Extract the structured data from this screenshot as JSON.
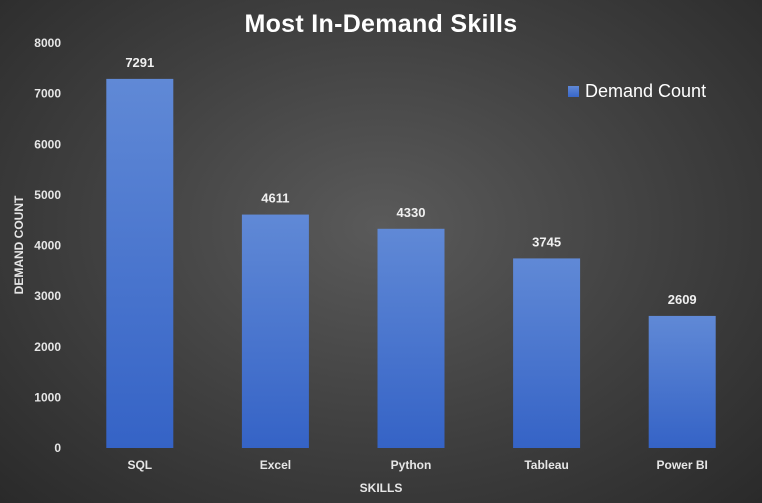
{
  "chart_data": {
    "type": "bar",
    "title": "Most In-Demand Skills",
    "xlabel": "SKILLS",
    "ylabel": "DEMAND COUNT",
    "categories": [
      "SQL",
      "Excel",
      "Python",
      "Tableau",
      "Power BI"
    ],
    "series": [
      {
        "name": "Demand Count",
        "values": [
          7291,
          4611,
          4330,
          3745,
          2609
        ]
      }
    ],
    "data_labels": [
      "7291",
      "4611",
      "4330",
      "3745",
      "2609"
    ],
    "ylim": [
      0,
      8000
    ],
    "yticks": [
      "0",
      "1000",
      "2000",
      "3000",
      "4000",
      "5000",
      "6000",
      "7000",
      "8000"
    ],
    "grid": false,
    "legend": "top-right",
    "colors": {
      "bar_top": "#6089d6",
      "bar_bottom": "#3563c6",
      "background_center": "#5a5a5a",
      "background_edge": "#2a2a2a",
      "text": "#ffffff"
    }
  }
}
